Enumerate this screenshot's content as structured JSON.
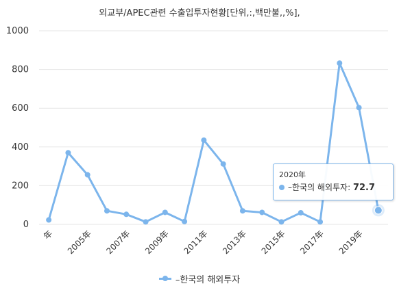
{
  "chart_data": {
    "type": "line",
    "title": "외교부/APEC관련 수출입투자현황[단위,:,백만불,,%],",
    "x": [
      "年",
      "2004年",
      "2005年",
      "2006年",
      "2007年",
      "2008年",
      "2009年",
      "2010年",
      "2011年",
      "2012年",
      "2013年",
      "2014年",
      "2015年",
      "2016年",
      "2017年",
      "2018年",
      "2019年",
      "2020年"
    ],
    "x_tick_labels": [
      "年",
      "2005年",
      "2007年",
      "2009年",
      "2011年",
      "2013年",
      "2015年",
      "2017年",
      "2019年"
    ],
    "series": [
      {
        "name": "–한국의 해외투자",
        "values": [
          23,
          370,
          256,
          70,
          52,
          13,
          62,
          15,
          435,
          312,
          70,
          62,
          13,
          60,
          13,
          833,
          603,
          72.7
        ]
      }
    ],
    "ylim": [
      0,
      1000
    ],
    "y_ticks": [
      0,
      200,
      400,
      600,
      800,
      1000
    ],
    "grid": "horizontal",
    "legend_position": "bottom-center",
    "colors": {
      "series": "#7cb5ec",
      "grid": "#e6e6e6"
    }
  },
  "tooltip": {
    "header": "2020年",
    "series_label": "–한국의 해외투자: ",
    "value": "72.7"
  },
  "legend": {
    "label": "–한국의 해외투자"
  }
}
